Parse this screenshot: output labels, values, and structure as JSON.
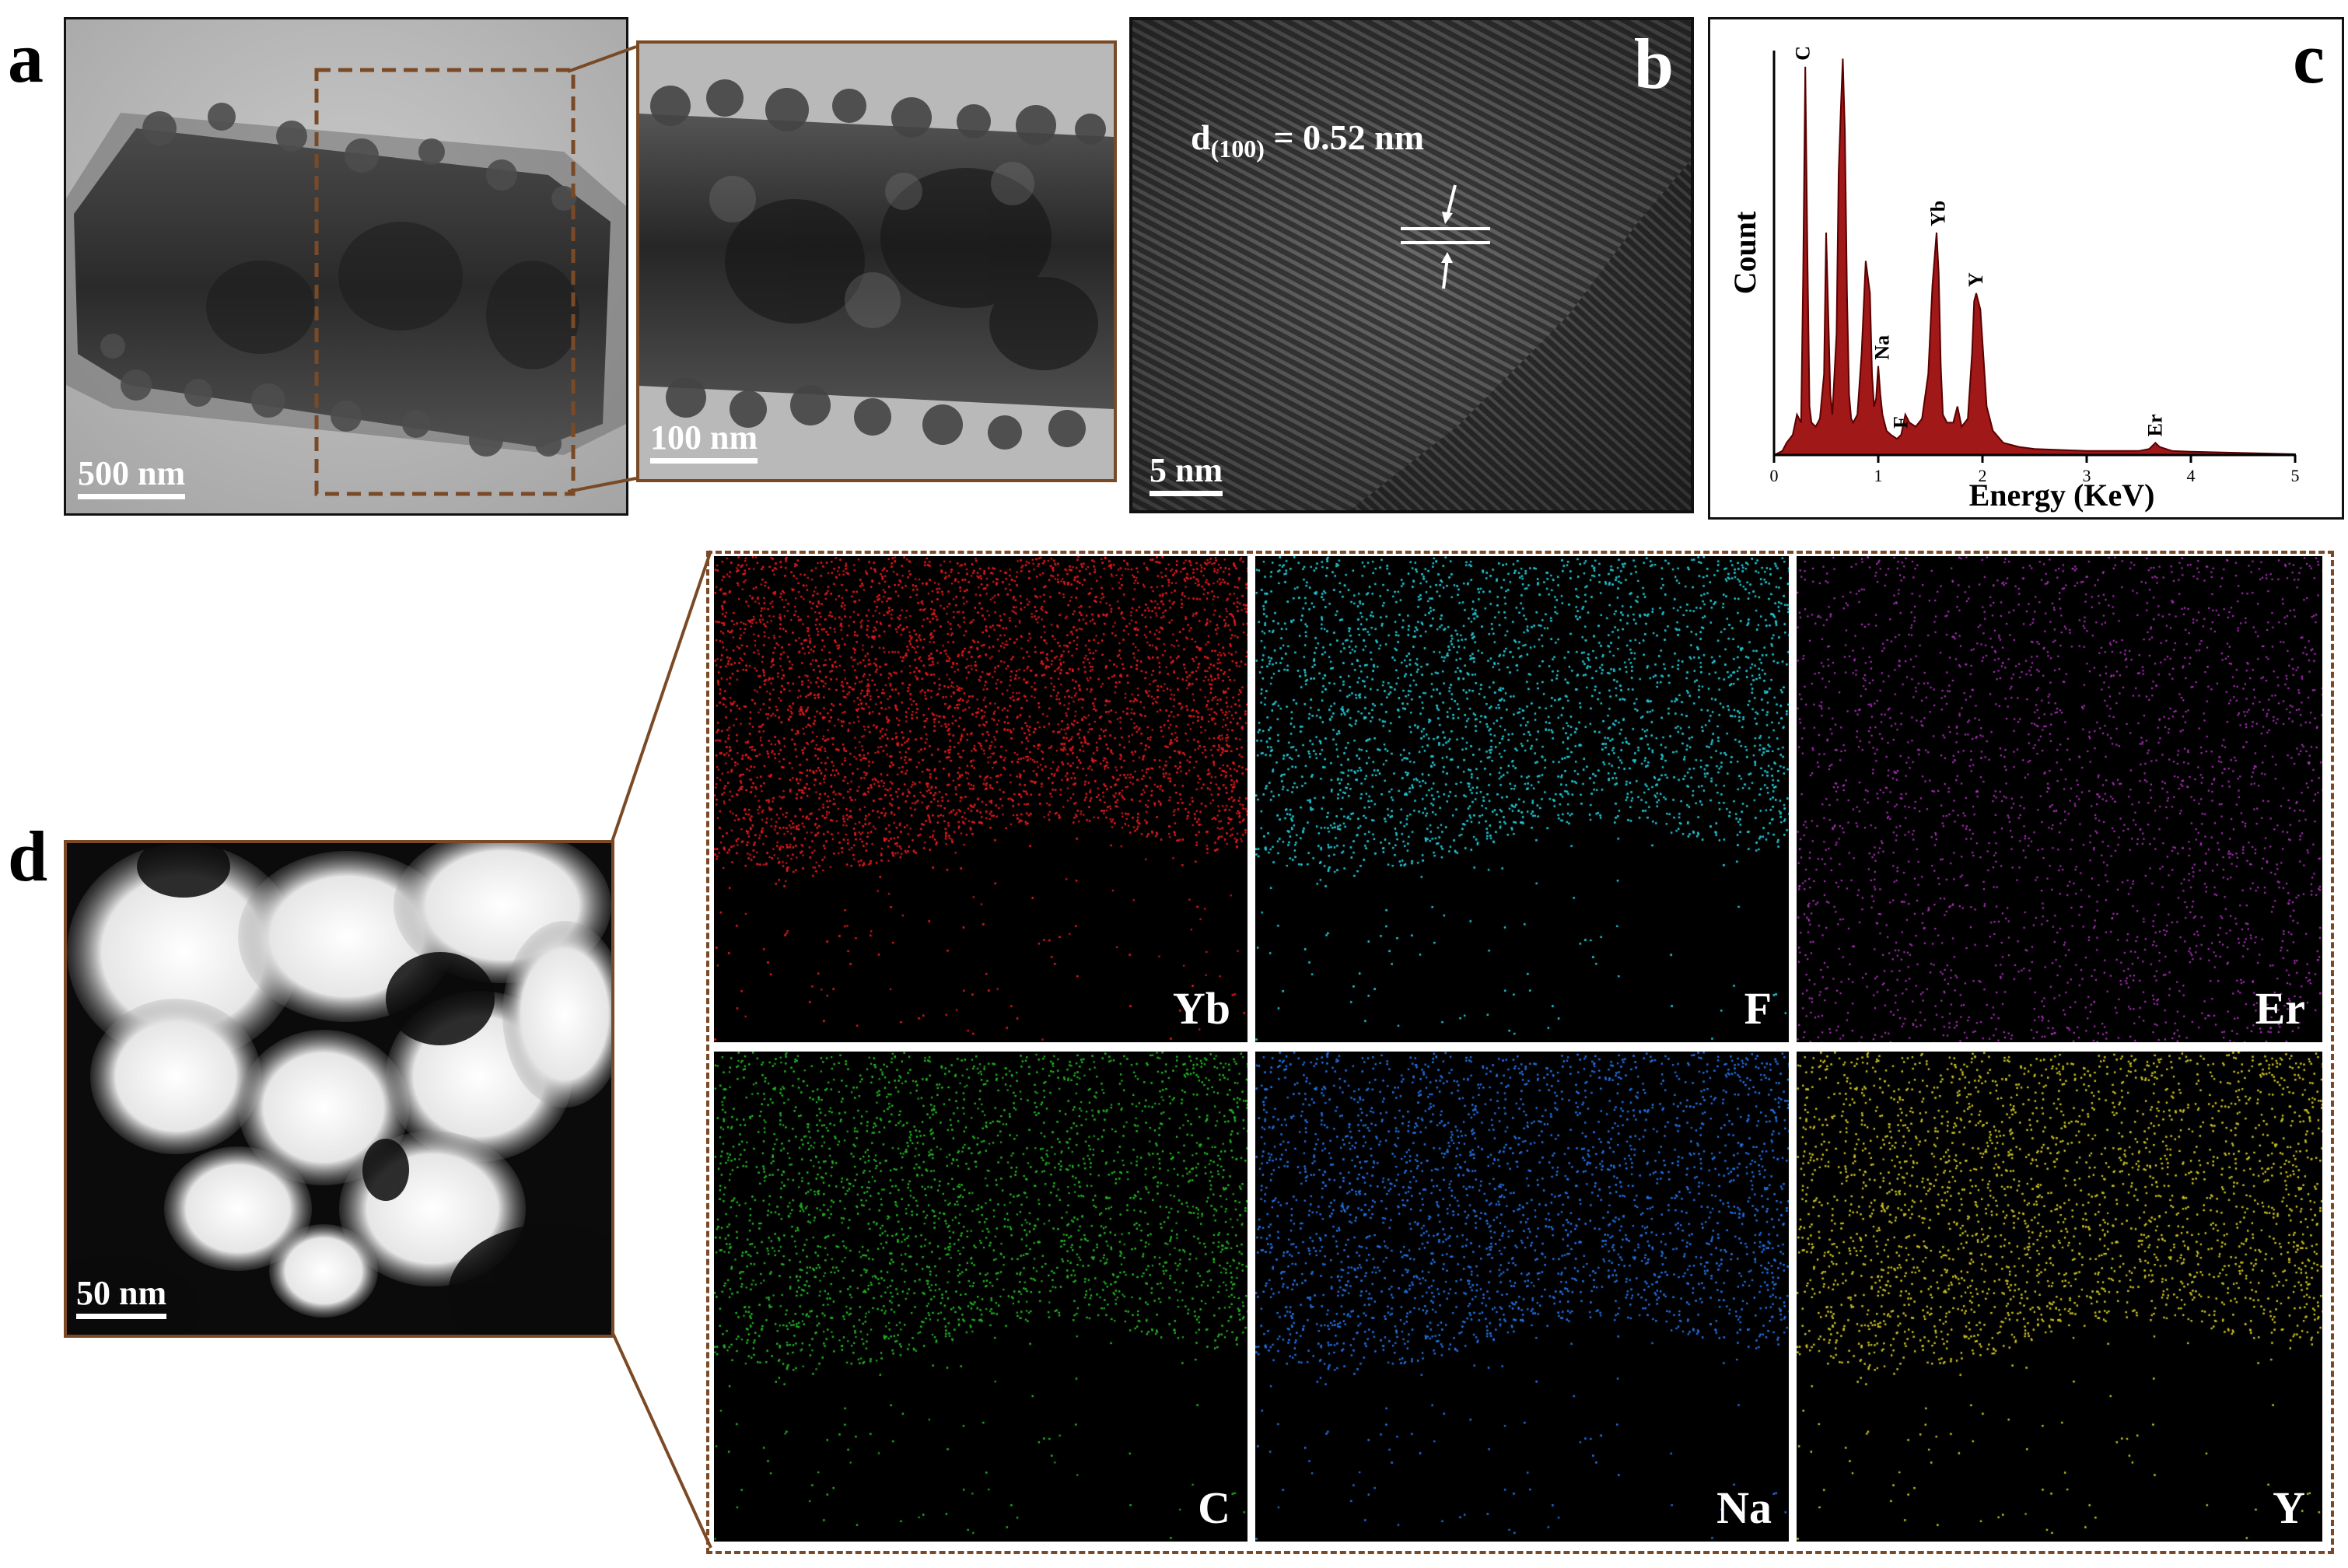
{
  "panels": {
    "a": {
      "letter": "a",
      "scalebar_main": "500 nm",
      "scalebar_zoom": "100 nm"
    },
    "b": {
      "letter": "b",
      "d_spacing_prefix": "d",
      "d_spacing_sub": "(100)",
      "d_spacing_value": " = 0.52 nm",
      "scalebar": "5 nm"
    },
    "c": {
      "letter": "c"
    },
    "d": {
      "letter": "d",
      "scalebar": "50 nm",
      "maps": [
        {
          "label": "Yb",
          "color": "#e41a1c"
        },
        {
          "label": "F",
          "color": "#22c8d4"
        },
        {
          "label": "Er",
          "color": "#b030c0"
        },
        {
          "label": "C",
          "color": "#22b522"
        },
        {
          "label": "Na",
          "color": "#1f6fe0"
        },
        {
          "label": "Y",
          "color": "#c8c020"
        }
      ]
    }
  },
  "colors": {
    "frame_brown": "#7a4a26",
    "spectrum_fill": "#a01818"
  },
  "chart_data": {
    "type": "area",
    "title": "",
    "xlabel": "Energy (KeV)",
    "ylabel": "Count",
    "xlim": [
      0,
      5
    ],
    "ylim": [
      0,
      100
    ],
    "xticks": [
      "0",
      "1",
      "2",
      "3",
      "4",
      "5"
    ],
    "series": [
      {
        "name": "",
        "x": [
          0.0,
          0.08,
          0.12,
          0.18,
          0.22,
          0.26,
          0.28,
          0.3,
          0.32,
          0.34,
          0.36,
          0.4,
          0.44,
          0.48,
          0.5,
          0.52,
          0.54,
          0.56,
          0.6,
          0.62,
          0.64,
          0.66,
          0.68,
          0.7,
          0.72,
          0.74,
          0.76,
          0.8,
          0.84,
          0.88,
          0.92,
          0.94,
          0.96,
          0.98,
          1.0,
          1.02,
          1.04,
          1.06,
          1.08,
          1.12,
          1.18,
          1.22,
          1.26,
          1.3,
          1.36,
          1.42,
          1.48,
          1.52,
          1.56,
          1.58,
          1.6,
          1.62,
          1.66,
          1.72,
          1.76,
          1.8,
          1.86,
          1.9,
          1.92,
          1.94,
          1.96,
          1.98,
          2.0,
          2.04,
          2.1,
          2.2,
          2.35,
          2.5,
          3.0,
          3.5,
          3.6,
          3.66,
          3.7,
          3.76,
          3.82,
          4.0,
          4.5,
          5.0
        ],
        "y": [
          0,
          1,
          3,
          5,
          10,
          8,
          45,
          96,
          50,
          12,
          8,
          7,
          9,
          20,
          55,
          35,
          15,
          10,
          30,
          70,
          85,
          98,
          80,
          40,
          15,
          9,
          8,
          10,
          25,
          48,
          40,
          20,
          12,
          14,
          22,
          15,
          10,
          8,
          6,
          5,
          4,
          5,
          10,
          8,
          7,
          9,
          20,
          42,
          55,
          45,
          22,
          10,
          8,
          8,
          12,
          7,
          9,
          25,
          38,
          40,
          38,
          36,
          28,
          12,
          6,
          3,
          2,
          1.5,
          1,
          1,
          1.5,
          3,
          2,
          1.5,
          1,
          0.8,
          0.5,
          0.2
        ]
      }
    ],
    "peak_labels": [
      "C",
      "Na",
      "F",
      "Yb",
      "Y",
      "Er"
    ]
  }
}
